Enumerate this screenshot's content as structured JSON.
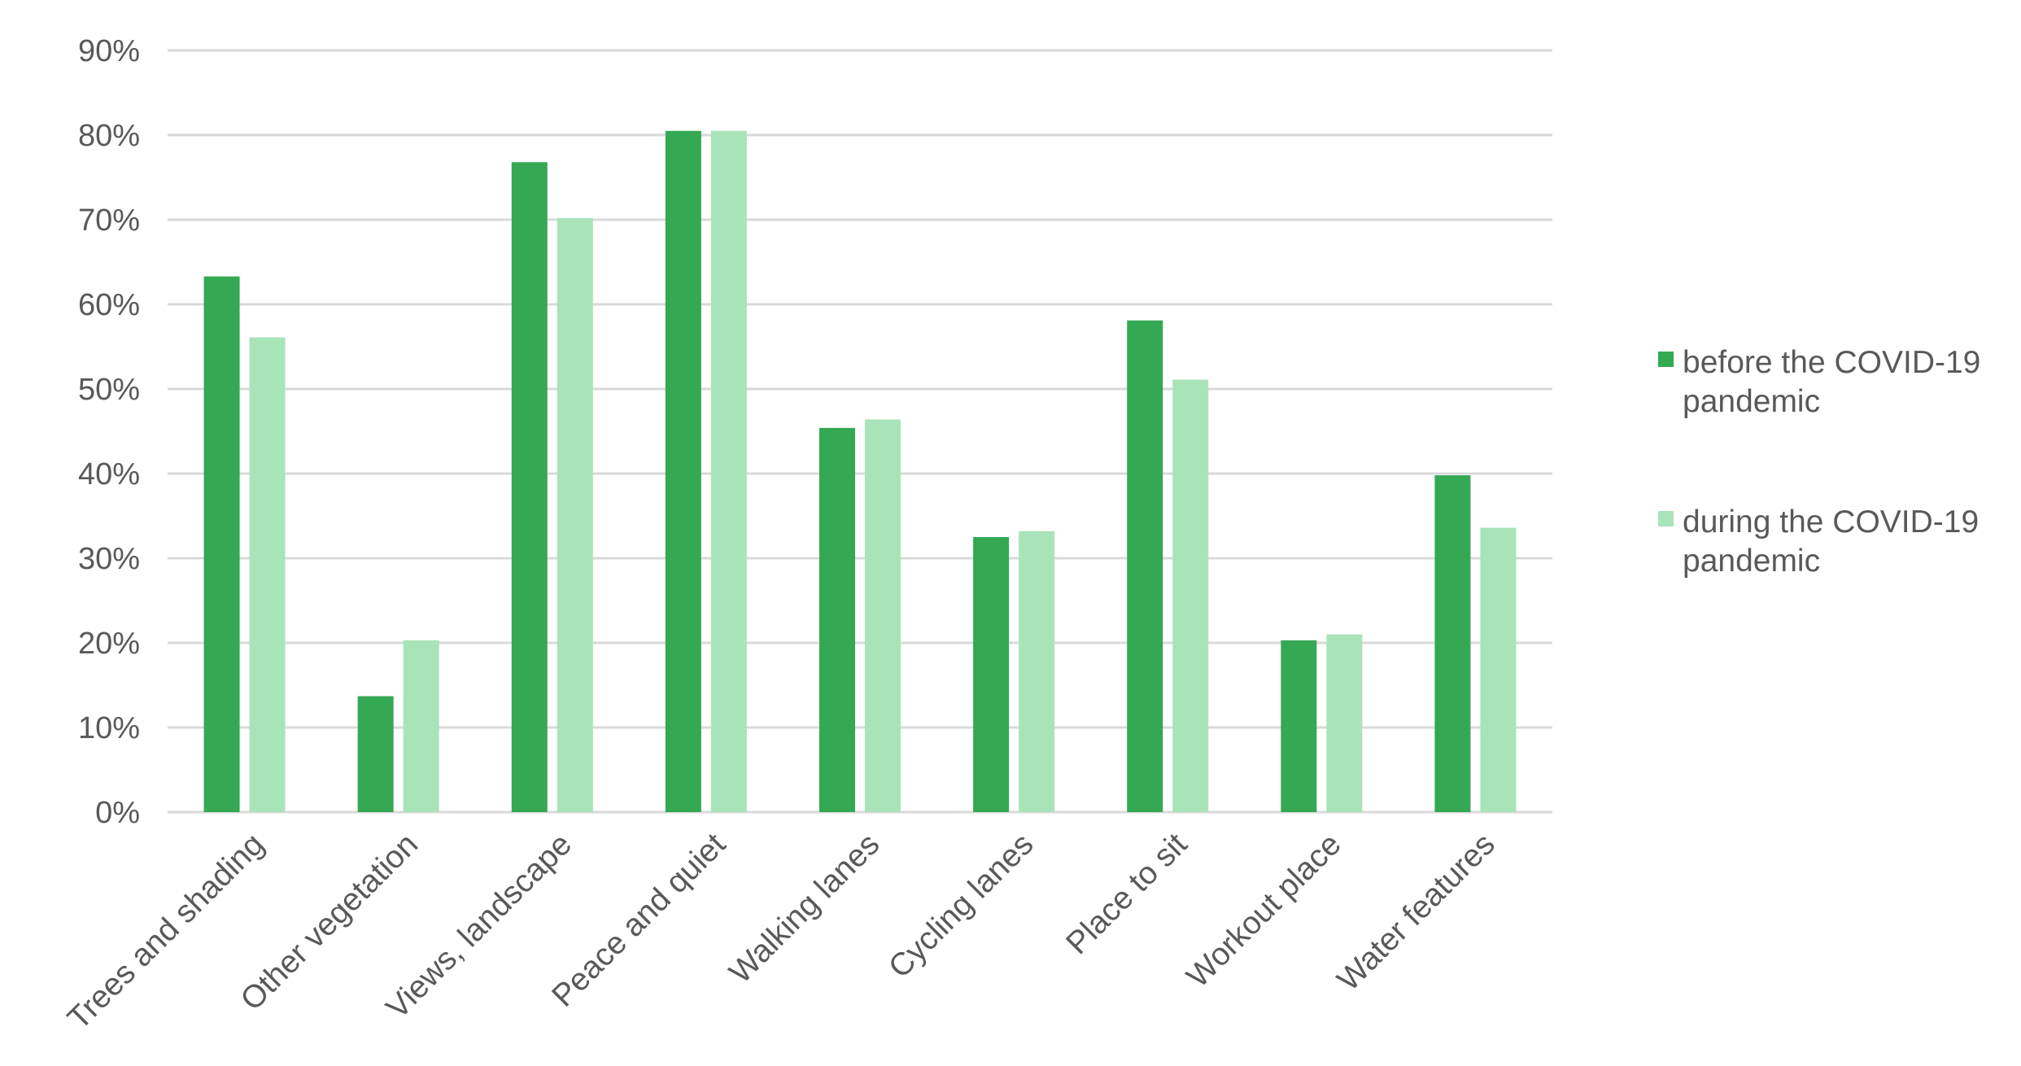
{
  "chart_data": {
    "type": "bar",
    "title": "",
    "xlabel": "",
    "ylabel": "",
    "ylim": [
      0,
      90
    ],
    "y_ticks": [
      0,
      10,
      20,
      30,
      40,
      50,
      60,
      70,
      80,
      90
    ],
    "y_tick_labels": [
      "0%",
      "10%",
      "20%",
      "30%",
      "40%",
      "50%",
      "60%",
      "70%",
      "80%",
      "90%"
    ],
    "grid": true,
    "legend_position": "right",
    "categories": [
      "Trees and shading",
      "Other vegetation",
      "Views, landscape",
      "Peace and quiet",
      "Walking lanes",
      "Cycling lanes",
      "Place to sit",
      "Workout place",
      "Water features"
    ],
    "series": [
      {
        "name": "before the COVID-19 pandemic",
        "legend_lines": [
          "before the COVID-19",
          "pandemic"
        ],
        "color": "#34a853",
        "values": [
          63.3,
          13.7,
          76.8,
          80.5,
          45.4,
          32.5,
          58.1,
          20.3,
          39.8
        ]
      },
      {
        "name": "during the COVID-19 pandemic",
        "legend_lines": [
          "during the COVID-19",
          "pandemic"
        ],
        "color": "#a8e4b8",
        "values": [
          56.1,
          20.3,
          70.2,
          80.5,
          46.4,
          33.2,
          51.1,
          21.0,
          33.6
        ]
      }
    ]
  }
}
